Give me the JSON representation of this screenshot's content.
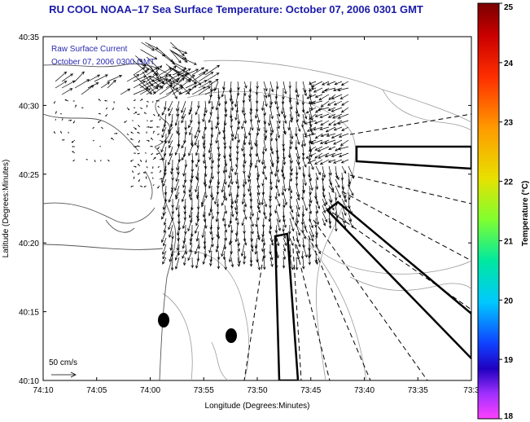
{
  "title": "RU COOL  NOAA–17  Sea Surface Temperature:  October 07, 2006 0301 GMT",
  "overlay_label": "Raw Surface Current",
  "overlay_time": "October 07, 2006 0300 GMT",
  "scale_label": "50 cm/s",
  "x_axis": {
    "label": "Longitude (Degrees:Minutes)",
    "ticks": [
      "74:10",
      "74:05",
      "74:00",
      "73:55",
      "73:50",
      "73:45",
      "73:40",
      "73:35",
      "73:3"
    ]
  },
  "y_axis": {
    "label": "Latitude (Degrees:Minutes)",
    "ticks": [
      "40:35",
      "40:30",
      "40:25",
      "40:20",
      "40:15",
      "40:10"
    ]
  },
  "colorbar": {
    "label": "Temperature (°C)",
    "ticks": [
      "25",
      "24",
      "23",
      "22",
      "21",
      "20",
      "19",
      "18"
    ],
    "range": [
      18,
      25
    ]
  },
  "colors": {
    "title": "#1a1aa8",
    "overlay_text": "#2a2ab0",
    "land_outline": "#555555",
    "bathymetry": "#9a9a9a",
    "vectors": "#000000"
  }
}
